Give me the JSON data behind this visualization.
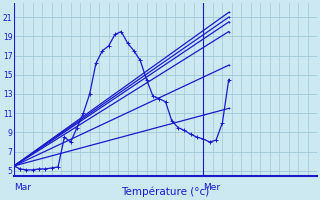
{
  "background_color": "#cce8f0",
  "grid_color": "#a0c8d8",
  "line_color": "#1a1acc",
  "xlabel": "Température (°c)",
  "ylim": [
    4.5,
    22.5
  ],
  "xlim": [
    0,
    48
  ],
  "yticks": [
    5,
    7,
    9,
    11,
    13,
    15,
    17,
    19,
    21
  ],
  "mar_x": 0,
  "mer_x": 30,
  "series0": [
    [
      0,
      5.5
    ],
    [
      1,
      5.2
    ],
    [
      2,
      5.1
    ],
    [
      3,
      5.1
    ],
    [
      4,
      5.2
    ],
    [
      5,
      5.2
    ],
    [
      6,
      5.3
    ],
    [
      7,
      5.4
    ],
    [
      8,
      8.5
    ],
    [
      9,
      8.0
    ],
    [
      10,
      9.5
    ],
    [
      11,
      11.0
    ],
    [
      12,
      13.0
    ],
    [
      13,
      16.2
    ],
    [
      14,
      17.5
    ],
    [
      15,
      18.0
    ],
    [
      16,
      19.2
    ],
    [
      17,
      19.5
    ],
    [
      18,
      18.3
    ],
    [
      19,
      17.5
    ],
    [
      20,
      16.5
    ],
    [
      21,
      14.5
    ],
    [
      22,
      12.8
    ],
    [
      23,
      12.5
    ],
    [
      24,
      12.2
    ],
    [
      25,
      10.2
    ],
    [
      26,
      9.5
    ],
    [
      27,
      9.2
    ],
    [
      28,
      8.8
    ],
    [
      29,
      8.5
    ],
    [
      30,
      8.3
    ],
    [
      31,
      8.0
    ],
    [
      32,
      8.2
    ],
    [
      33,
      10.0
    ],
    [
      34,
      14.5
    ]
  ],
  "fan_lines": [
    [
      [
        0,
        5.5
      ],
      [
        34,
        21.5
      ]
    ],
    [
      [
        0,
        5.5
      ],
      [
        34,
        21.0
      ]
    ],
    [
      [
        0,
        5.5
      ],
      [
        34,
        19.5
      ]
    ],
    [
      [
        0,
        5.5
      ],
      [
        34,
        20.5
      ]
    ],
    [
      [
        0,
        5.5
      ],
      [
        30,
        10.8
      ],
      [
        34,
        11.5
      ]
    ],
    [
      [
        0,
        5.5
      ],
      [
        34,
        16.0
      ]
    ]
  ],
  "figsize": [
    3.2,
    2.0
  ],
  "dpi": 100
}
